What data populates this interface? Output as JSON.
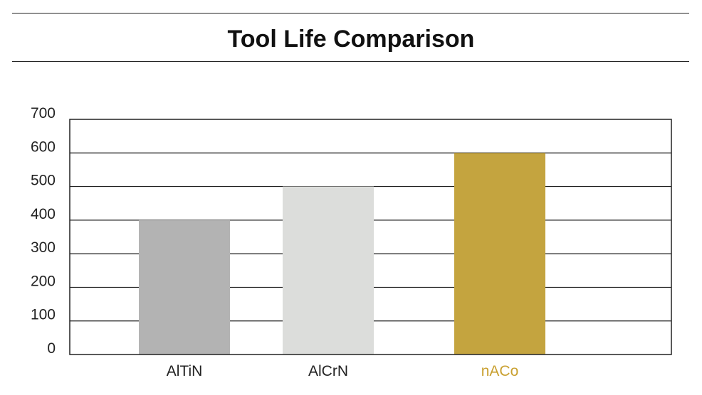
{
  "chart_data": {
    "type": "bar",
    "title": "Tool Life Comparison",
    "categories": [
      "AlTiN",
      "AlCrN",
      "nACo"
    ],
    "values": [
      400,
      500,
      600
    ],
    "colors": [
      "#b3b3b3",
      "#dcdddb",
      "#c4a43f"
    ],
    "label_colors": [
      "#222222",
      "#222222",
      "#c9a030"
    ],
    "ylim": [
      0,
      700
    ],
    "yticks": [
      "0",
      "100",
      "200",
      "300",
      "400",
      "500",
      "600",
      "700"
    ],
    "grid": true,
    "xlabel": "",
    "ylabel": ""
  }
}
